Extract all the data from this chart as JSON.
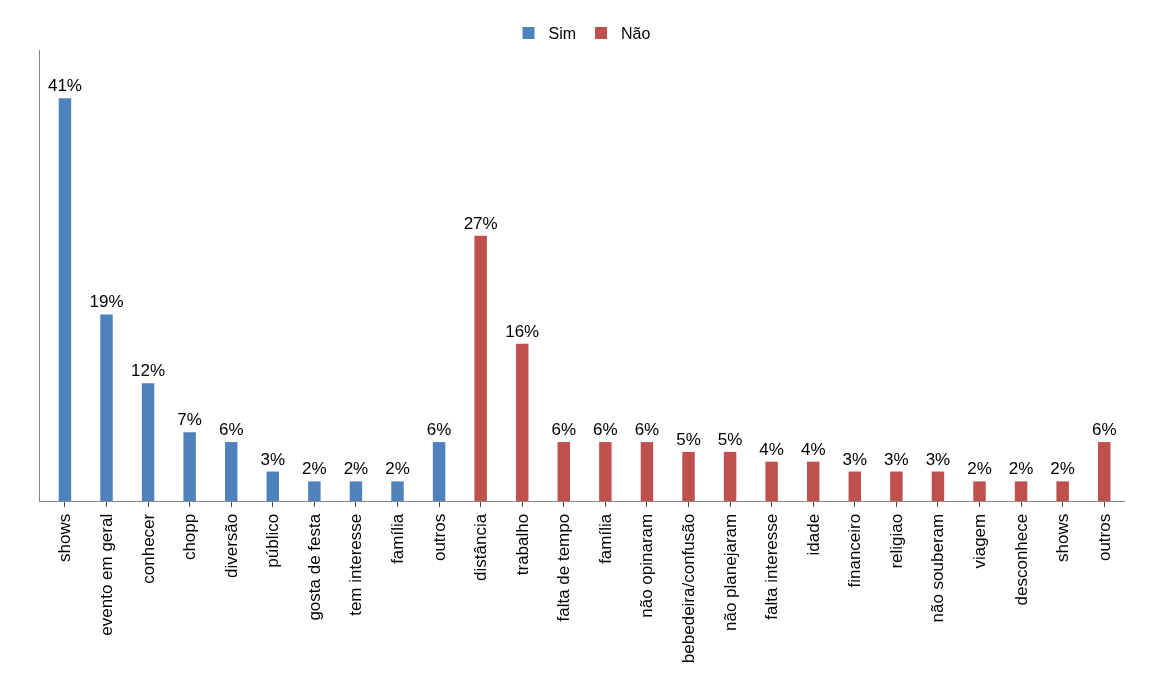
{
  "chart_data": {
    "type": "bar",
    "categories": [
      "shows",
      "evento em geral",
      "conhecer",
      "chopp",
      "diversão",
      "público",
      "gosta de festa",
      "tem interesse",
      "família",
      "outros",
      "distância",
      "trabalho",
      "falta de tempo",
      "família",
      "não opinaram",
      "bebedeira/confusão",
      "não planejaram",
      "falta interesse",
      "idade",
      "financeiro",
      "religiao",
      "não souberam",
      "viagem",
      "desconhece",
      "shows",
      "outros"
    ],
    "series": [
      {
        "name": "Sim",
        "color": "#4f81bd",
        "values": [
          41,
          19,
          12,
          7,
          6,
          3,
          2,
          2,
          2,
          6,
          null,
          null,
          null,
          null,
          null,
          null,
          null,
          null,
          null,
          null,
          null,
          null,
          null,
          null,
          null,
          null
        ],
        "value_labels": [
          "41%",
          "19%",
          "12%",
          "7%",
          "6%",
          "3%",
          "2%",
          "2%",
          "2%",
          "6%",
          null,
          null,
          null,
          null,
          null,
          null,
          null,
          null,
          null,
          null,
          null,
          null,
          null,
          null,
          null,
          null
        ]
      },
      {
        "name": "Não",
        "color": "#c0504d",
        "values": [
          null,
          null,
          null,
          null,
          null,
          null,
          null,
          null,
          null,
          null,
          27,
          16,
          6,
          6,
          6,
          5,
          5,
          4,
          4,
          3,
          3,
          3,
          2,
          2,
          2,
          6
        ],
        "value_labels": [
          null,
          null,
          null,
          null,
          null,
          null,
          null,
          null,
          null,
          null,
          "27%",
          "16%",
          "6%",
          "6%",
          "6%",
          "5%",
          "5%",
          "4%",
          "4%",
          "3%",
          "3%",
          "3%",
          "2%",
          "2%",
          "2%",
          "6%"
        ]
      }
    ],
    "legend": "top"
  }
}
